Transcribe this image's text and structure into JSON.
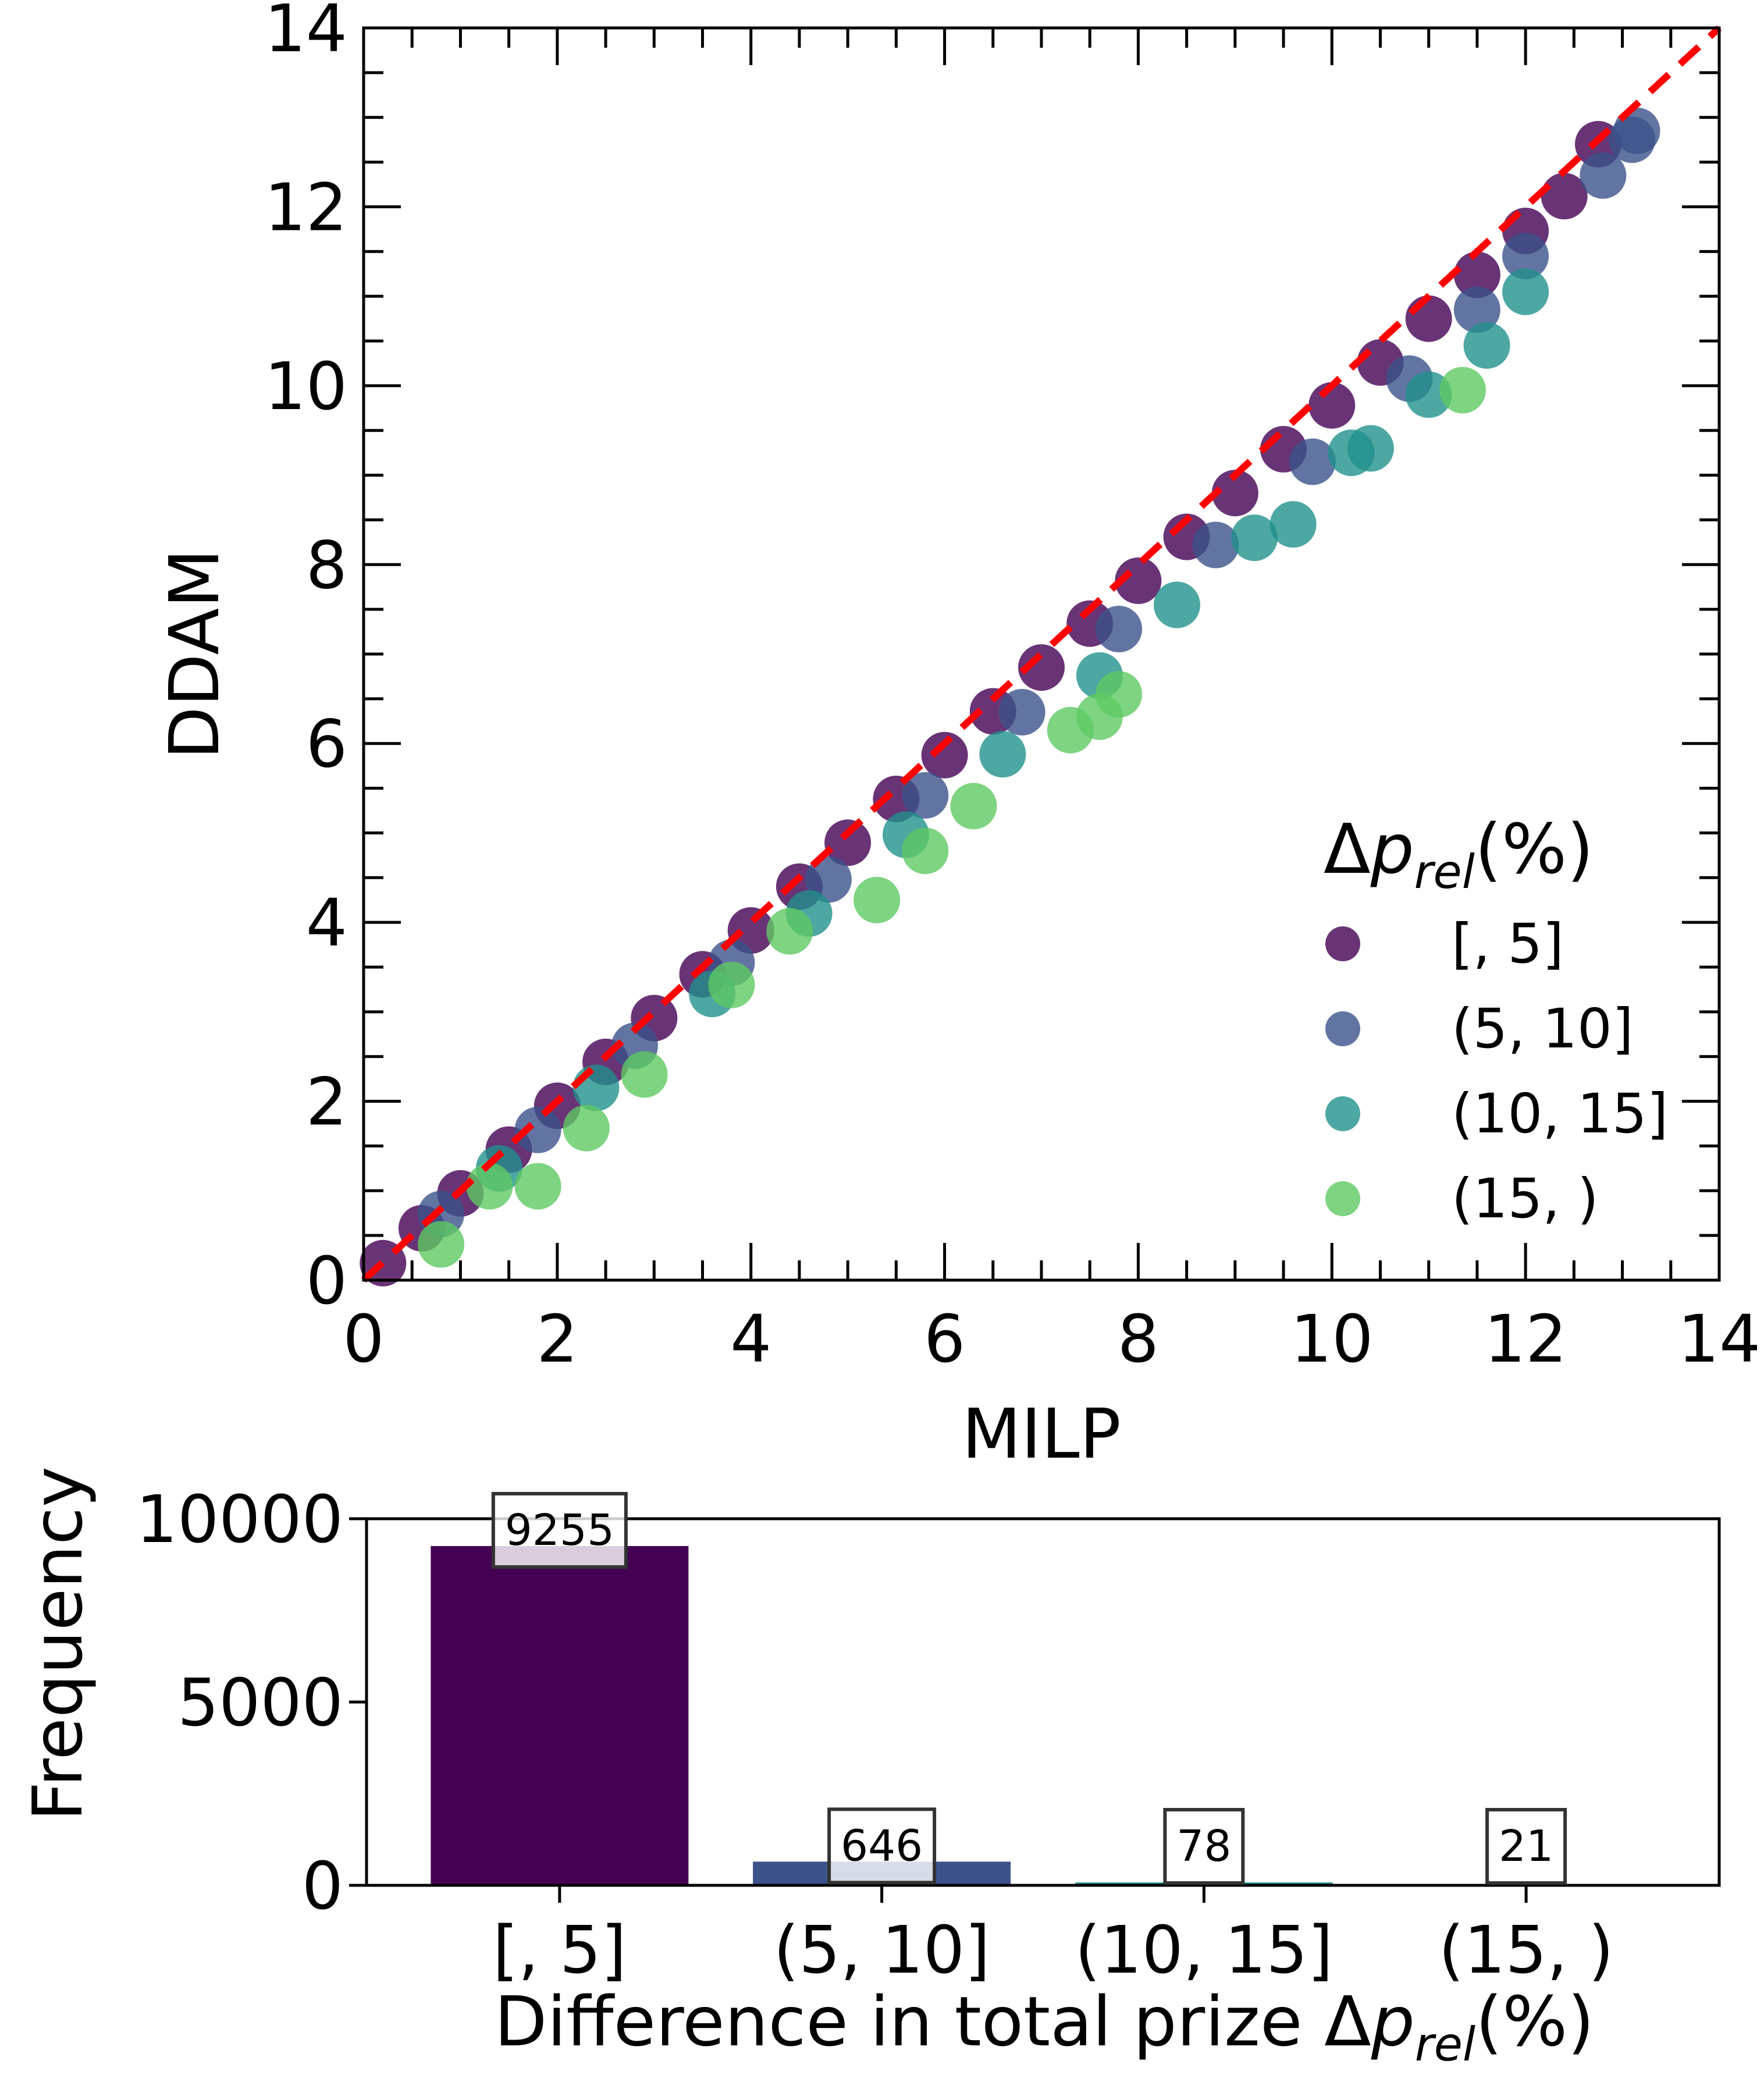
{
  "chart_data": [
    {
      "type": "scatter",
      "xlabel": "MILP",
      "ylabel": "DDAM",
      "xlim": [
        0,
        14
      ],
      "ylim": [
        0,
        14
      ],
      "xticks": [
        "0",
        "2",
        "4",
        "6",
        "8",
        "10",
        "12",
        "14"
      ],
      "yticks": [
        "0",
        "2",
        "4",
        "6",
        "8",
        "10",
        "12",
        "14"
      ],
      "reference_line": {
        "style": "dashed",
        "color": "#ff0000",
        "points": [
          [
            0,
            0
          ],
          [
            14,
            14
          ]
        ]
      },
      "legend": {
        "placement": "lower-right"
      },
      "series": [
        {
          "name": "[, 5]",
          "color": "#440154",
          "points": [
            [
              0.2,
              0.19
            ],
            [
              0.6,
              0.58
            ],
            [
              1.0,
              0.97
            ],
            [
              1.5,
              1.46
            ],
            [
              2.0,
              1.95
            ],
            [
              2.5,
              2.44
            ],
            [
              3.0,
              2.93
            ],
            [
              3.5,
              3.42
            ],
            [
              4.0,
              3.91
            ],
            [
              4.5,
              4.4
            ],
            [
              5.0,
              4.89
            ],
            [
              5.5,
              5.38
            ],
            [
              6.0,
              5.87
            ],
            [
              6.5,
              6.36
            ],
            [
              7.0,
              6.85
            ],
            [
              7.5,
              7.34
            ],
            [
              8.0,
              7.82
            ],
            [
              8.5,
              8.31
            ],
            [
              9.0,
              8.8
            ],
            [
              9.5,
              9.29
            ],
            [
              10.0,
              9.78
            ],
            [
              10.5,
              10.26
            ],
            [
              11.0,
              10.75
            ],
            [
              11.5,
              11.24
            ],
            [
              12.0,
              11.73
            ],
            [
              12.4,
              12.12
            ],
            [
              12.75,
              12.7
            ]
          ]
        },
        {
          "name": "(5, 10]",
          "color": "#3b528b",
          "points": [
            [
              0.8,
              0.74
            ],
            [
              1.8,
              1.68
            ],
            [
              2.8,
              2.62
            ],
            [
              3.8,
              3.55
            ],
            [
              4.8,
              4.48
            ],
            [
              5.8,
              5.42
            ],
            [
              6.8,
              6.35
            ],
            [
              7.8,
              7.28
            ],
            [
              8.8,
              8.22
            ],
            [
              9.8,
              9.15
            ],
            [
              10.8,
              10.08
            ],
            [
              11.5,
              10.85
            ],
            [
              12.0,
              11.45
            ],
            [
              12.8,
              12.35
            ],
            [
              13.1,
              12.75
            ],
            [
              13.15,
              12.85
            ]
          ]
        },
        {
          "name": "(10, 15]",
          "color": "#21918c",
          "points": [
            [
              1.4,
              1.25
            ],
            [
              2.4,
              2.15
            ],
            [
              3.6,
              3.2
            ],
            [
              4.6,
              4.1
            ],
            [
              5.6,
              4.98
            ],
            [
              6.6,
              5.88
            ],
            [
              7.6,
              6.76
            ],
            [
              8.4,
              7.55
            ],
            [
              9.2,
              8.3
            ],
            [
              9.6,
              8.45
            ],
            [
              10.2,
              9.25
            ],
            [
              10.4,
              9.3
            ],
            [
              11.0,
              9.9
            ],
            [
              11.6,
              10.45
            ],
            [
              12.0,
              11.05
            ]
          ]
        },
        {
          "name": "(15, )",
          "color": "#5ec962",
          "points": [
            [
              0.8,
              0.4
            ],
            [
              1.3,
              1.05
            ],
            [
              1.8,
              1.05
            ],
            [
              2.3,
              1.7
            ],
            [
              2.9,
              2.3
            ],
            [
              3.8,
              3.3
            ],
            [
              4.4,
              3.9
            ],
            [
              5.3,
              4.25
            ],
            [
              5.8,
              4.8
            ],
            [
              6.3,
              5.3
            ],
            [
              7.3,
              6.15
            ],
            [
              7.6,
              6.3
            ],
            [
              7.8,
              6.55
            ],
            [
              11.35,
              9.95
            ]
          ]
        }
      ]
    },
    {
      "type": "bar",
      "xlabel": "Difference in total prize Δp_rel(%)",
      "ylabel": "Frequency",
      "ylim": [
        0,
        10000
      ],
      "yticks": [
        "0",
        "5000",
        "10000"
      ],
      "categories": [
        "[, 5]",
        "(5, 10]",
        "(10, 15]",
        "(15, )"
      ],
      "values": [
        9255,
        646,
        78,
        21
      ],
      "value_labels": [
        "9255",
        "646",
        "78",
        "21"
      ],
      "colors": [
        "#440154",
        "#3b528b",
        "#21918c",
        "#5ec962"
      ]
    }
  ],
  "legend_title": {
    "symbol": "Δ",
    "var": "p",
    "sub": "rel",
    "suffix": "(%)"
  },
  "bar_xlabel_parts": {
    "prefix": "Difference in total prize ",
    "symbol": "Δ",
    "var": "p",
    "sub": "rel",
    "suffix": "(%)"
  }
}
